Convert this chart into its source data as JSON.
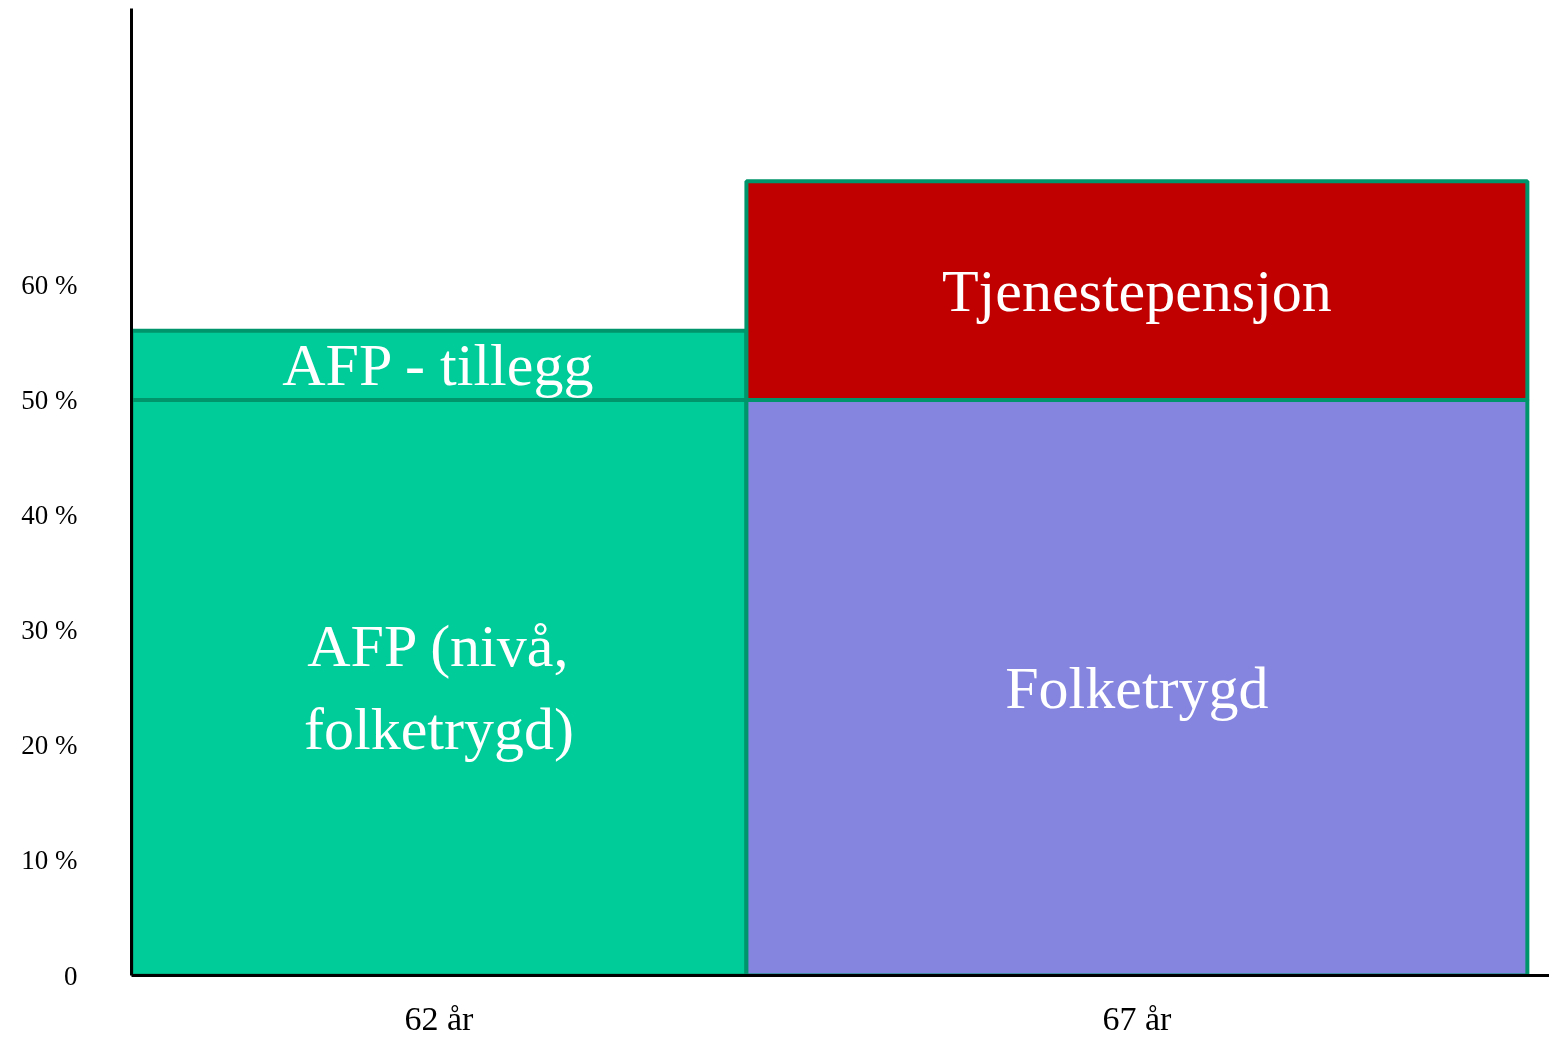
{
  "chart_data": {
    "type": "bar",
    "stacked": true,
    "categories": [
      "62 år",
      "67 år"
    ],
    "series": [
      {
        "name": "AFP (nivå,\nfolketrygd)",
        "color": "#00cc99",
        "values": [
          50,
          null
        ]
      },
      {
        "name": "AFP - tillegg",
        "color": "#00cc99",
        "values": [
          6,
          null
        ]
      },
      {
        "name": "Folketrygd",
        "color": "#8585e0",
        "values": [
          null,
          50
        ]
      },
      {
        "name": "Tjenestepensjon",
        "color": "#c00000",
        "values": [
          null,
          19
        ]
      }
    ],
    "ylim": [
      0,
      84
    ],
    "yticks": [
      {
        "value": 0,
        "label": "0"
      },
      {
        "value": 10,
        "label": "10 %"
      },
      {
        "value": 20,
        "label": "20 %"
      },
      {
        "value": 30,
        "label": "30 %"
      },
      {
        "value": 40,
        "label": "40 %"
      },
      {
        "value": 50,
        "label": "50 %"
      },
      {
        "value": 60,
        "label": "60 %"
      }
    ]
  }
}
